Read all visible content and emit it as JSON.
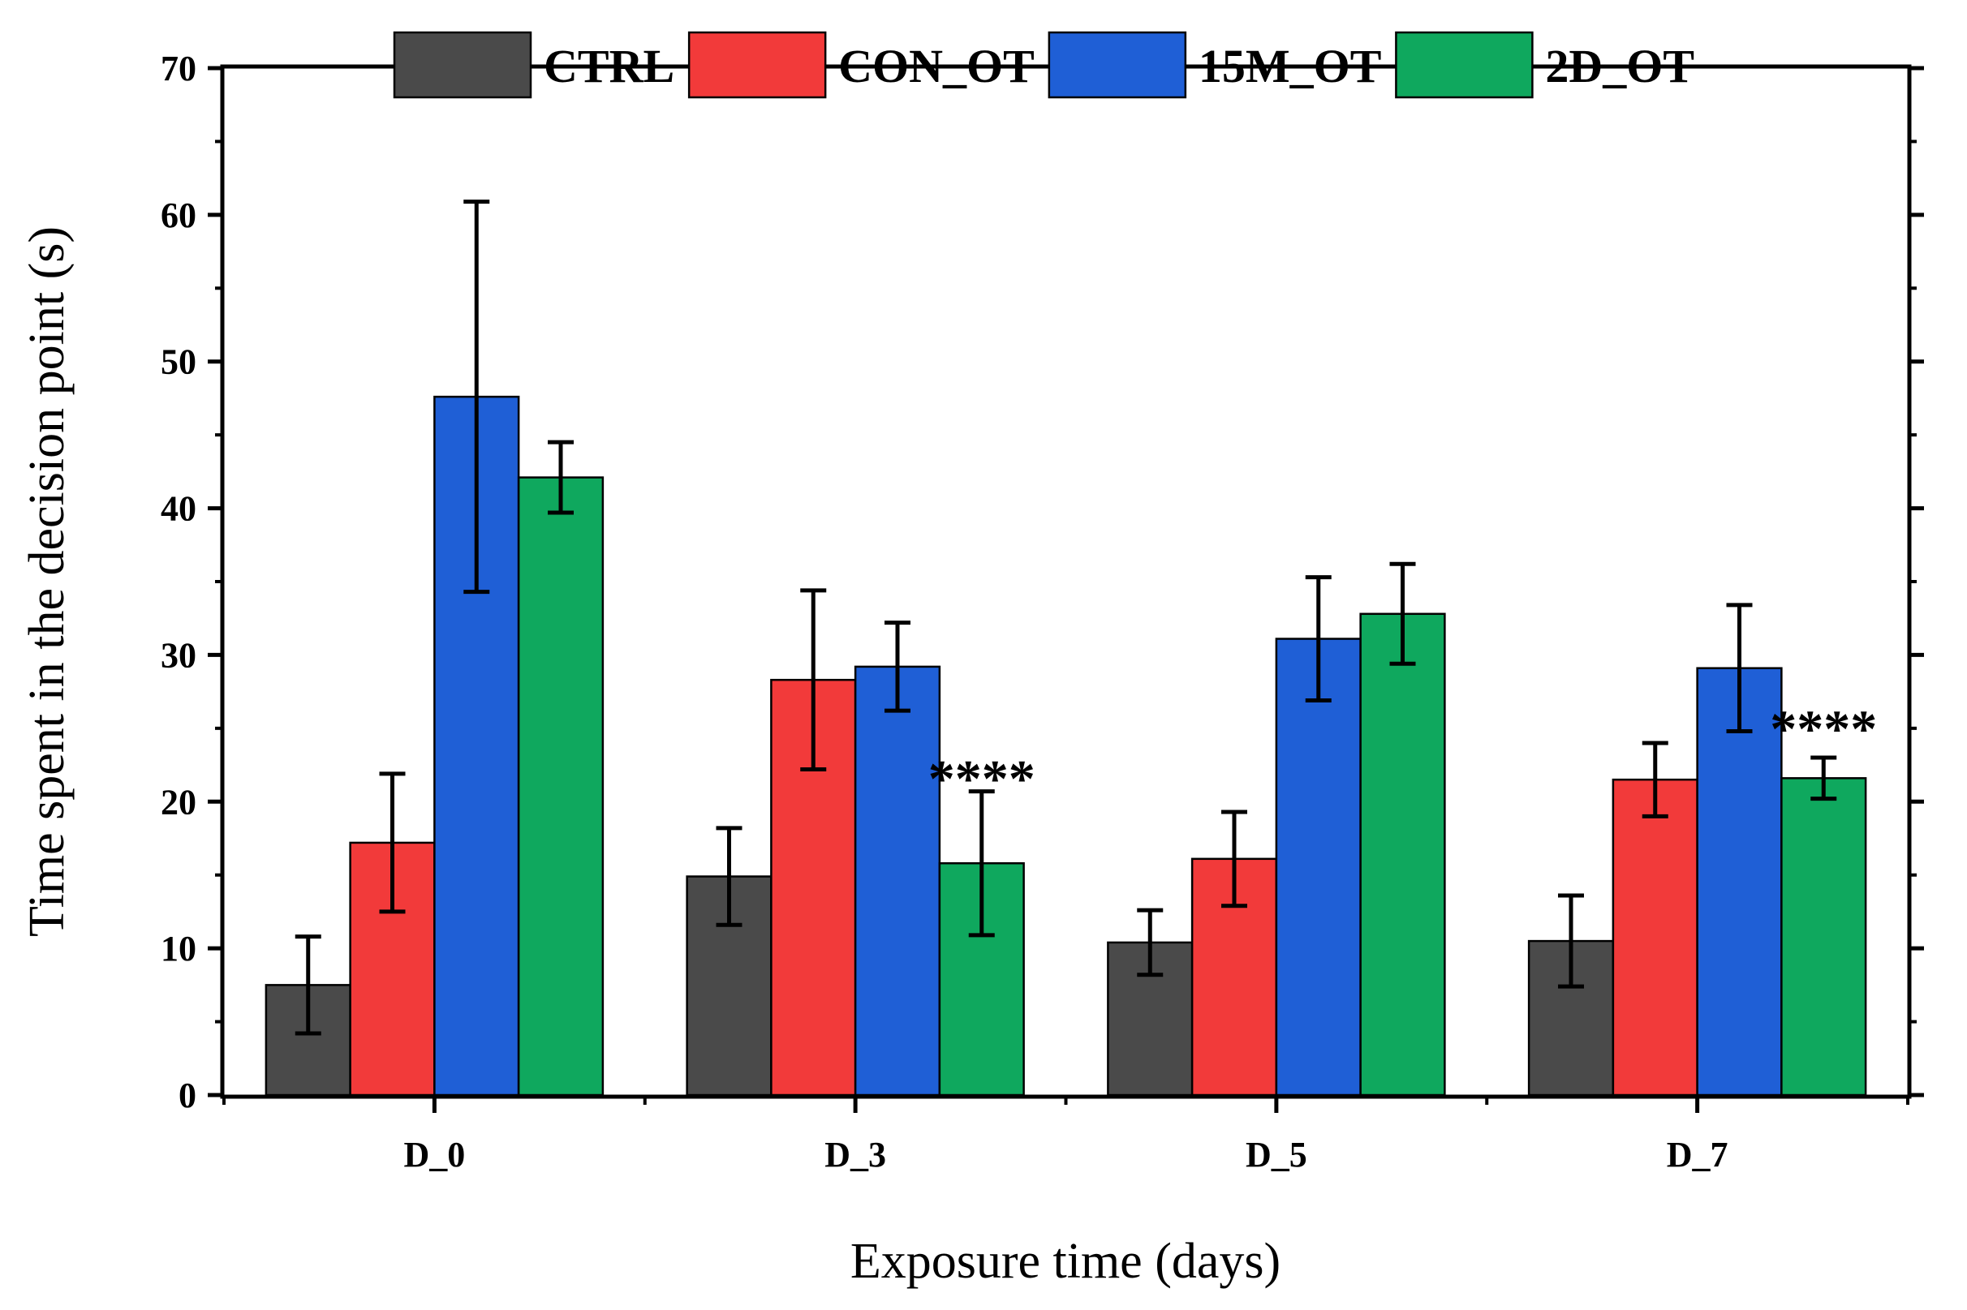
{
  "chart_data": {
    "type": "bar",
    "xlabel": "Exposure time (days)",
    "ylabel": "Time spent in the decision point (s)",
    "ylim": [
      0,
      70
    ],
    "yticks": [
      "0",
      "10",
      "20",
      "30",
      "40",
      "50",
      "60",
      "70"
    ],
    "ytick_values": [
      0,
      10,
      20,
      30,
      40,
      50,
      60,
      70
    ],
    "categories": [
      "D_0",
      "D_3",
      "D_5",
      "D_7"
    ],
    "legend_position": "top",
    "grid": false,
    "series": [
      {
        "name": "CTRL",
        "color": "#4a4a4a",
        "values": [
          7.5,
          14.9,
          10.4,
          10.5
        ],
        "errors": [
          3.3,
          3.3,
          2.2,
          3.1
        ]
      },
      {
        "name": "CON_OT",
        "color": "#f23a3a",
        "values": [
          17.2,
          28.3,
          16.1,
          21.5
        ],
        "errors": [
          4.7,
          6.1,
          3.2,
          2.5
        ]
      },
      {
        "name": "15M_OT",
        "color": "#1f5fd6",
        "values": [
          47.6,
          29.2,
          31.1,
          29.1
        ],
        "errors": [
          13.3,
          3.0,
          4.2,
          4.3
        ]
      },
      {
        "name": "2D_OT",
        "color": "#0fa85e",
        "values": [
          42.1,
          15.8,
          32.8,
          21.6
        ],
        "errors": [
          2.4,
          4.9,
          3.4,
          1.4
        ]
      }
    ],
    "annotations": [
      {
        "text": "****",
        "category": "D_3",
        "value": 22.0
      },
      {
        "text": "****",
        "category": "D_7",
        "value": 25.4
      }
    ]
  }
}
